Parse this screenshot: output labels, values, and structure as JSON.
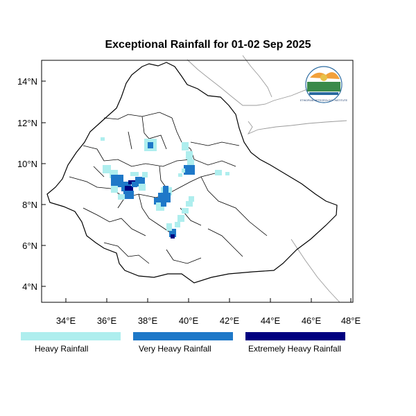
{
  "title": "Exceptional Rainfall for 01-02 Sep 2025",
  "map": {
    "lon_range": [
      32.8,
      48.2
    ],
    "lat_range": [
      3.3,
      15.2
    ],
    "x_ticks": [
      "34°E",
      "36°E",
      "38°E",
      "40°E",
      "42°E",
      "44°E",
      "46°E",
      "48°E"
    ],
    "y_ticks": [
      "14°N",
      "12°N",
      "10°N",
      "8°N",
      "6°N",
      "4°N"
    ],
    "logo_icon": "ethiopian-meteorology-institute-logo",
    "logo_text": "ETHIOPIAN METEOROLOGY INSTITUTE"
  },
  "legend": [
    {
      "label": "Heavy Rainfall",
      "color": "#aeeeee"
    },
    {
      "label": "Very Heavy Rainfall",
      "color": "#1e78c8"
    },
    {
      "label": "Extremely Heavy Rainfall",
      "color": "#000080"
    }
  ]
}
